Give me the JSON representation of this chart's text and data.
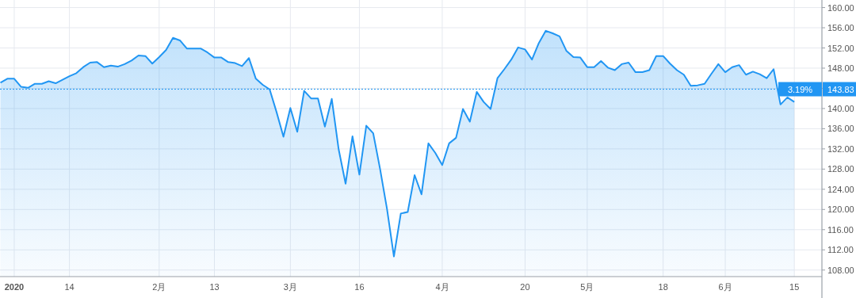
{
  "chart_data": {
    "type": "area",
    "color": "#2196f3",
    "categories": [
      null,
      null,
      "2020",
      null,
      null,
      null,
      null,
      null,
      null,
      null,
      "14",
      null,
      null,
      null,
      null,
      null,
      null,
      null,
      null,
      null,
      null,
      null,
      null,
      "2月",
      null,
      null,
      null,
      null,
      null,
      null,
      null,
      "13",
      null,
      null,
      null,
      null,
      null,
      null,
      null,
      null,
      null,
      null,
      "3月",
      null,
      null,
      null,
      null,
      null,
      null,
      null,
      null,
      null,
      "16",
      null,
      null,
      null,
      null,
      null,
      null,
      null,
      null,
      null,
      null,
      null,
      "4月",
      null,
      null,
      null,
      null,
      null,
      null,
      null,
      null,
      null,
      null,
      null,
      "20",
      null,
      null,
      null,
      null,
      null,
      null,
      null,
      null,
      "5月",
      null,
      null,
      null,
      null,
      null,
      null,
      null,
      null,
      null,
      null,
      "18",
      null,
      null,
      null,
      null,
      null,
      null,
      null,
      null,
      "6月",
      null,
      null,
      null,
      null,
      null,
      null,
      null,
      null,
      null,
      "15",
      null,
      null,
      null,
      null
    ],
    "values": [
      145.1,
      145.9,
      145.9,
      144.3,
      144.1,
      144.9,
      144.9,
      145.4,
      145.0,
      145.7,
      146.4,
      147.0,
      148.2,
      149.1,
      149.2,
      148.2,
      148.5,
      148.3,
      148.8,
      149.5,
      150.5,
      150.4,
      148.9,
      150.2,
      151.6,
      154.0,
      153.5,
      151.9,
      151.9,
      151.9,
      151.1,
      150.1,
      150.1,
      149.2,
      149.0,
      148.4,
      150.0,
      145.9,
      144.7,
      143.8,
      139.3,
      134.4,
      140.1,
      135.4,
      143.5,
      142.0,
      142.0,
      136.4,
      141.9,
      131.9,
      125.1,
      134.5,
      126.9,
      136.6,
      135.1,
      128.0,
      120.1,
      110.7,
      119.2,
      119.5,
      126.8,
      123.0,
      133.1,
      131.2,
      128.8,
      133.1,
      134.2,
      139.9,
      137.4,
      143.3,
      141.3,
      139.9,
      146.0,
      147.8,
      149.7,
      152.1,
      151.7,
      149.7,
      153.0,
      155.4,
      154.9,
      154.3,
      151.4,
      150.2,
      150.1,
      148.2,
      148.2,
      149.4,
      148.1,
      147.6,
      148.8,
      149.1,
      147.2,
      147.2,
      147.6,
      150.4,
      150.4,
      148.9,
      147.6,
      146.7,
      144.5,
      144.6,
      144.9,
      146.9,
      148.8,
      147.2,
      148.2,
      148.6,
      146.7,
      147.3,
      146.8,
      146.0,
      147.8,
      140.8,
      142.2,
      141.3,
      null,
      null,
      null,
      null
    ],
    "ylim": [
      106.7,
      161.5
    ],
    "yticks": [
      {
        "value": 108,
        "label": "108.00"
      },
      {
        "value": 112,
        "label": "112.00"
      },
      {
        "value": 116,
        "label": "116.00"
      },
      {
        "value": 120,
        "label": "120.00"
      },
      {
        "value": 124,
        "label": "124.00"
      },
      {
        "value": 128,
        "label": "128.00"
      },
      {
        "value": 132,
        "label": "132.00"
      },
      {
        "value": 136,
        "label": "136.00"
      },
      {
        "value": 140,
        "label": "140.00"
      },
      {
        "value": 144,
        "label": null
      },
      {
        "value": 148,
        "label": "148.00"
      },
      {
        "value": 152,
        "label": "152.00"
      },
      {
        "value": 156,
        "label": "156.00"
      },
      {
        "value": 160,
        "label": "160.00"
      }
    ],
    "grid": true,
    "ref_lines": [
      {
        "axis": "y",
        "value": 143.83,
        "label": "143.83",
        "color": "#2196f3",
        "line_style": "dotted"
      }
    ],
    "annotations": [
      {
        "text": "3.19%",
        "y": 143.83
      }
    ]
  }
}
